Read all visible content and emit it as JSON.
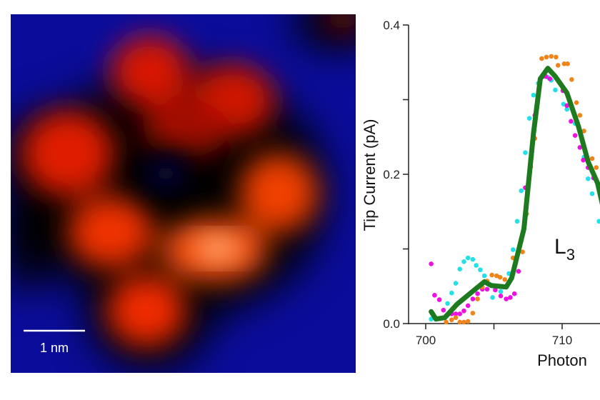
{
  "stm_image": {
    "scale_bar_label": "1 nm",
    "colors": {
      "background": "#0a0c9a",
      "rim": "#000000",
      "lobe": "#e02000",
      "bright": "#ffd0a0",
      "hole": "#0a0c60"
    }
  },
  "chart_data": {
    "type": "scatter",
    "title": "",
    "xlabel": "Photon",
    "ylabel": "Tip Current (pA)",
    "annotation": {
      "main": "L",
      "subscript": "3"
    },
    "xlim": [
      699.5,
      712.8
    ],
    "ylim": [
      0.0,
      0.4
    ],
    "x_ticks": [
      700,
      705,
      710
    ],
    "x_tick_labels": [
      "700",
      "",
      "710"
    ],
    "y_ticks": [
      0.0,
      0.1,
      0.2,
      0.3,
      0.4
    ],
    "y_tick_labels": [
      "0.0",
      "",
      "0.2",
      "",
      "0.4"
    ],
    "grid": false,
    "series": [
      {
        "style": "dots",
        "color": "#22e0e8",
        "x": [
          700.4,
          701.6,
          701.9,
          702.2,
          702.5,
          702.8,
          703.1,
          703.45,
          703.7,
          704.0,
          704.3,
          704.9,
          705.5,
          706.1,
          706.4,
          706.7,
          707.0,
          707.3,
          707.6,
          707.9,
          708.25,
          708.6,
          708.95,
          709.2,
          709.5,
          710.1,
          710.35,
          710.95,
          711.6,
          711.9,
          712.2,
          712.7
        ],
        "y": [
          0.006,
          0.027,
          0.041,
          0.054,
          0.073,
          0.083,
          0.088,
          0.086,
          0.078,
          0.072,
          0.064,
          0.035,
          0.043,
          0.067,
          0.099,
          0.137,
          0.178,
          0.229,
          0.275,
          0.306,
          0.322,
          0.331,
          0.33,
          0.326,
          0.313,
          0.294,
          0.287,
          0.268,
          0.223,
          0.194,
          0.174,
          0.137
        ]
      },
      {
        "style": "dots",
        "color": "#ee10e0",
        "x": [
          700.4,
          700.65,
          701.0,
          701.3,
          701.9,
          702.2,
          702.5,
          702.8,
          703.1,
          703.45,
          703.8,
          704.15,
          704.5,
          705.1,
          705.5,
          705.9,
          706.2,
          706.5,
          706.8,
          707.3,
          707.7,
          708.0,
          708.8,
          709.1,
          710.05,
          710.35,
          710.65,
          710.95,
          711.3,
          711.55,
          711.9,
          712.3
        ],
        "y": [
          0.08,
          0.038,
          0.032,
          0.018,
          0.013,
          0.013,
          0.013,
          0.017,
          0.024,
          0.033,
          0.04,
          0.046,
          0.046,
          0.045,
          0.037,
          0.033,
          0.035,
          0.04,
          0.07,
          0.182,
          0.221,
          0.279,
          0.331,
          0.328,
          0.312,
          0.292,
          0.271,
          0.252,
          0.236,
          0.219,
          0.209,
          0.195
        ]
      },
      {
        "style": "dots",
        "color": "#f08418",
        "x": [
          701.5,
          701.9,
          702.2,
          702.5,
          702.8,
          703.1,
          703.45,
          703.8,
          704.15,
          704.5,
          704.85,
          705.2,
          705.45,
          705.8,
          706.4,
          707.1,
          707.4,
          707.7,
          708.0,
          708.5,
          708.85,
          709.2,
          709.55,
          709.7,
          710.15,
          710.4,
          710.7,
          711.05,
          711.3,
          711.6,
          712.2,
          712.5
        ],
        "y": [
          0.002,
          0.005,
          0.008,
          0.002,
          0.002,
          0.003,
          0.014,
          0.033,
          0.049,
          0.057,
          0.065,
          0.064,
          0.062,
          0.059,
          0.088,
          0.096,
          0.147,
          0.21,
          0.248,
          0.355,
          0.357,
          0.358,
          0.357,
          0.346,
          0.348,
          0.348,
          0.327,
          0.296,
          0.279,
          0.258,
          0.221,
          0.209
        ]
      },
      {
        "style": "line",
        "color": "#1e7a1e",
        "x": [
          700.4,
          700.75,
          701.4,
          702.3,
          704.3,
          704.8,
          705.9,
          706.3,
          707.2,
          707.9,
          708.4,
          708.95,
          709.5,
          710.35,
          711.2,
          711.9,
          712.6,
          713.0
        ],
        "y": [
          0.016,
          0.006,
          0.008,
          0.026,
          0.056,
          0.051,
          0.049,
          0.061,
          0.127,
          0.255,
          0.328,
          0.342,
          0.331,
          0.309,
          0.264,
          0.217,
          0.188,
          0.156
        ]
      }
    ]
  }
}
